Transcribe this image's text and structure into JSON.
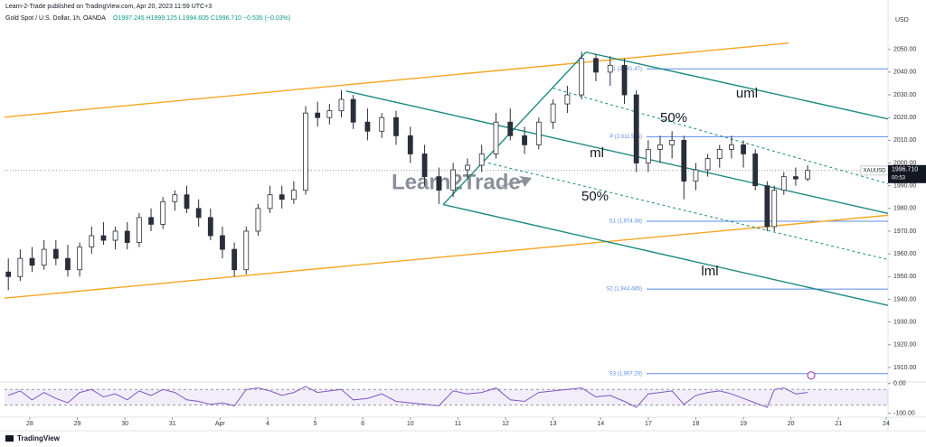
{
  "header": {
    "publisher": "Learn-2-Trade published on TradingView.com, Apr 20, 2023 11:59 UTC+3",
    "symbol": "Gold Spot / U.S. Dollar, 1h, OANDA",
    "ohlc": "O1997.245 H1999.125 L1994.605 C1996.710 −0.535 (−0.03%)"
  },
  "footer": "TradingView",
  "chart_data": {
    "type": "candlestick",
    "currency": "USD",
    "watermark": "Learn2Trade",
    "x": [
      -0.45,
      -0.2,
      0.05,
      0.3,
      0.55,
      0.8,
      1.05,
      1.3,
      1.55,
      1.8,
      2.05,
      2.3,
      2.55,
      2.8,
      3.05,
      3.3,
      3.55,
      3.8,
      4.05,
      4.3,
      4.55,
      4.8,
      5.05,
      5.3,
      5.55,
      5.8,
      6.05,
      6.3,
      6.55,
      6.8,
      7.1,
      7.4,
      7.7,
      8.0,
      8.3,
      8.6,
      8.9,
      9.2,
      9.5,
      9.8,
      10.1,
      10.4,
      10.7,
      11.0,
      11.3,
      11.6,
      11.9,
      12.2,
      12.5,
      12.75,
      13.0,
      13.25,
      13.5,
      13.75,
      14.0,
      14.25,
      14.5,
      14.75,
      15.0,
      15.25,
      15.5,
      15.65,
      15.85,
      16.1,
      16.35
    ],
    "open": [
      1952,
      1950,
      1958,
      1955,
      1962,
      1958,
      1953,
      1963,
      1968,
      1966,
      1970,
      1965,
      1976,
      1973,
      1983,
      1986,
      1980,
      1976,
      1968,
      1962,
      1953,
      1970,
      1980,
      1986,
      1984,
      1988,
      2022,
      2020,
      2023,
      2028,
      2018,
      2014,
      2020,
      2012,
      2004,
      1994,
      1988,
      1997,
      1999,
      2004,
      2018,
      2012,
      2008,
      2018,
      2026,
      2030,
      2046,
      2040,
      2043,
      2030,
      2000,
      2006,
      2008,
      2010,
      1992,
      1997,
      2002,
      2006,
      2008,
      2004,
      1990,
      1972,
      1988,
      1994,
      1993
    ],
    "high": [
      1958,
      1962,
      1963,
      1966,
      1966,
      1964,
      1965,
      1972,
      1974,
      1972,
      1974,
      1978,
      1980,
      1985,
      1988,
      1990,
      1984,
      1980,
      1972,
      1965,
      1972,
      1982,
      1990,
      1990,
      1992,
      2025,
      2027,
      2026,
      2032,
      2030,
      2024,
      2022,
      2023,
      2016,
      2008,
      1998,
      2000,
      2002,
      2008,
      2022,
      2024,
      2016,
      2020,
      2028,
      2034,
      2049,
      2048,
      2047,
      2046,
      2032,
      2010,
      2012,
      2014,
      2012,
      2000,
      2004,
      2008,
      2012,
      2010,
      2006,
      1992,
      1990,
      1996,
      1998,
      1999
    ],
    "low": [
      1944,
      1948,
      1952,
      1953,
      1955,
      1950,
      1950,
      1960,
      1964,
      1962,
      1962,
      1963,
      1970,
      1971,
      1979,
      1978,
      1972,
      1966,
      1958,
      1950,
      1951,
      1968,
      1978,
      1980,
      1982,
      1986,
      2016,
      2017,
      2020,
      2015,
      2010,
      2011,
      2008,
      2000,
      1990,
      1982,
      1985,
      1993,
      1996,
      2002,
      2010,
      2004,
      2006,
      2015,
      2022,
      2028,
      2036,
      2034,
      2026,
      1996,
      1996,
      2000,
      2002,
      1984,
      1988,
      1994,
      1998,
      2002,
      1998,
      1988,
      1970,
      1970,
      1986,
      1990,
      1992
    ],
    "close": [
      1950,
      1958,
      1955,
      1962,
      1958,
      1953,
      1963,
      1968,
      1966,
      1970,
      1965,
      1976,
      1973,
      1983,
      1986,
      1980,
      1976,
      1968,
      1962,
      1953,
      1970,
      1980,
      1986,
      1984,
      1988,
      2022,
      2020,
      2023,
      2028,
      2018,
      2014,
      2020,
      2012,
      2004,
      1994,
      1988,
      1997,
      1999,
      2004,
      2018,
      2012,
      2008,
      2018,
      2026,
      2030,
      2046,
      2040,
      2043,
      2030,
      2000,
      2006,
      2008,
      2010,
      1992,
      1997,
      2002,
      2006,
      2008,
      2004,
      1990,
      1972,
      1988,
      1994,
      1993,
      1996.71
    ],
    "xlim": [
      -0.53,
      18.04
    ],
    "xticks": [
      {
        "value": 0,
        "label": "28"
      },
      {
        "value": 1,
        "label": "29"
      },
      {
        "value": 2,
        "label": "30"
      },
      {
        "value": 3,
        "label": "31"
      },
      {
        "value": 4,
        "label": "Apr"
      },
      {
        "value": 5,
        "label": "4"
      },
      {
        "value": 6,
        "label": "5"
      },
      {
        "value": 7,
        "label": "6"
      },
      {
        "value": 8,
        "label": "10"
      },
      {
        "value": 9,
        "label": "11"
      },
      {
        "value": 10,
        "label": "12"
      },
      {
        "value": 11,
        "label": "13"
      },
      {
        "value": 12,
        "label": "14"
      },
      {
        "value": 13,
        "label": "17"
      },
      {
        "value": 14,
        "label": "18"
      },
      {
        "value": 15,
        "label": "19"
      },
      {
        "value": 16,
        "label": "20"
      },
      {
        "value": 17,
        "label": "21"
      },
      {
        "value": 18,
        "label": "24"
      }
    ],
    "ylim": [
      1904,
      2065
    ],
    "yticks": [
      {
        "value": 1910,
        "label": "1910.00"
      },
      {
        "value": 1920,
        "label": "1920.00"
      },
      {
        "value": 1930,
        "label": "1930.00"
      },
      {
        "value": 1940,
        "label": "1940.00"
      },
      {
        "value": 1950,
        "label": "1950.00"
      },
      {
        "value": 1960,
        "label": "1960.00"
      },
      {
        "value": 1970,
        "label": "1970.00"
      },
      {
        "value": 1980,
        "label": "1980.00"
      },
      {
        "value": 1990,
        "label": "1990.00"
      },
      {
        "value": 2000,
        "label": "2000.00"
      },
      {
        "value": 2010,
        "label": "2010.00"
      },
      {
        "value": 2020,
        "label": "2020.00"
      },
      {
        "value": 2030,
        "label": "2030.00"
      },
      {
        "value": 2040,
        "label": "2040.00"
      },
      {
        "value": 2050,
        "label": "2050.00"
      }
    ],
    "up_color": "#ffffff",
    "down_color": "#2a2e39",
    "last_price": {
      "symbol": "XAUUSD",
      "value": 1996.71,
      "label": "1996.710",
      "countdown": "00:53"
    },
    "levels": [
      {
        "label": "R1 (2,041.47)",
        "value": 2041.47
      },
      {
        "label": "P (2,011.575)",
        "value": 2011.575
      },
      {
        "label": "S1 (1,974.38)",
        "value": 1974.38
      },
      {
        "label": "S2 (1,944.485)",
        "value": 1944.485
      },
      {
        "label": "S3 (1,907.29)",
        "value": 1907.29
      }
    ],
    "level_color": "#5b8def",
    "lines": [
      {
        "color": "#f5a623",
        "points": [
          [
            -0.53,
            2020.2
          ],
          [
            15.95,
            2052.8
          ]
        ]
      },
      {
        "color": "#f5a623",
        "points": [
          [
            -0.53,
            1940.5
          ],
          [
            18.04,
            1977.0
          ]
        ]
      },
      {
        "color": "#1b8a80",
        "points": [
          [
            6.65,
            2031.7
          ],
          [
            18.04,
            1977.8
          ]
        ]
      },
      {
        "color": "#1b8a80",
        "points": [
          [
            11.69,
            2048.8
          ],
          [
            18.04,
            2019.4
          ]
        ]
      },
      {
        "color": "#1b8a80",
        "points": [
          [
            8.69,
            1981.7
          ],
          [
            18.04,
            1937.3
          ]
        ]
      },
      {
        "color": "#1b8a80",
        "points": [
          [
            8.69,
            1981.7
          ],
          [
            11.69,
            2048.8
          ]
        ]
      },
      {
        "color": "#1b8a80",
        "dash": true,
        "points": [
          [
            11.0,
            2032.9
          ],
          [
            18.04,
            1990.9
          ]
        ]
      },
      {
        "color": "#1b8a80",
        "dash": true,
        "points": [
          [
            9.64,
            2000.0
          ],
          [
            18.04,
            1957.5
          ]
        ]
      }
    ],
    "annotations": [
      "uml",
      "ml",
      "lml",
      "50%",
      "50%"
    ],
    "oscillator": {
      "ylim": [
        -110,
        2
      ],
      "yticks": [
        {
          "value": 0,
          "label": "0.00"
        },
        {
          "value": -100,
          "label": "-100.00"
        }
      ],
      "band": [
        -20,
        -72
      ],
      "color": "#7e57c2",
      "values": [
        -40,
        -25,
        -55,
        -30,
        -50,
        -65,
        -30,
        -20,
        -45,
        -35,
        -55,
        -25,
        -40,
        -20,
        -30,
        -55,
        -60,
        -70,
        -65,
        -75,
        -20,
        -15,
        -25,
        -40,
        -30,
        -10,
        -30,
        -25,
        -20,
        -55,
        -50,
        -35,
        -60,
        -65,
        -70,
        -75,
        -25,
        -35,
        -30,
        -15,
        -55,
        -60,
        -30,
        -25,
        -20,
        -15,
        -45,
        -40,
        -60,
        -80,
        -35,
        -30,
        -25,
        -70,
        -40,
        -30,
        -25,
        -35,
        -50,
        -65,
        -80,
        -20,
        -15,
        -35,
        -30
      ]
    }
  }
}
